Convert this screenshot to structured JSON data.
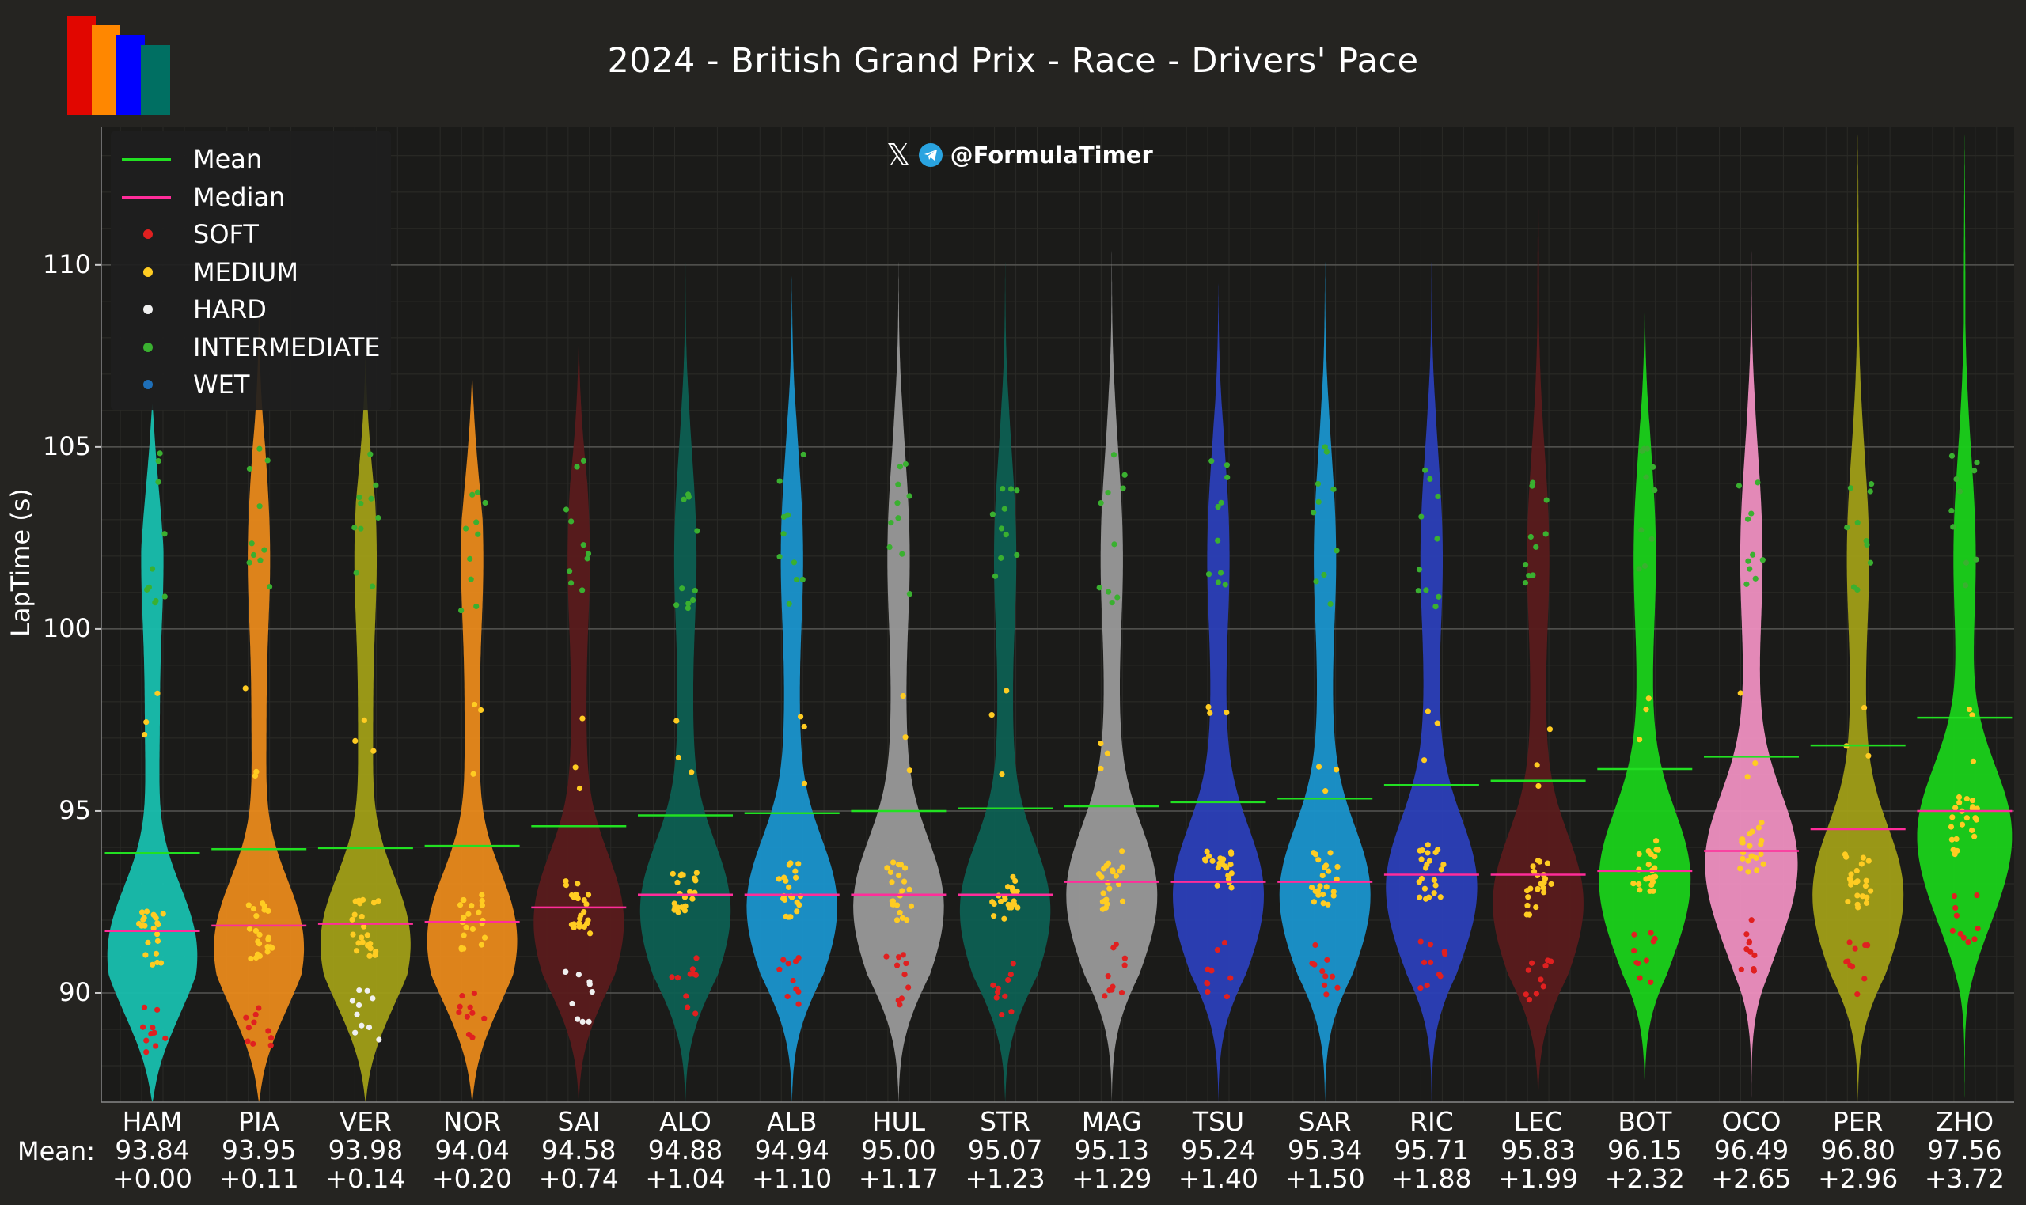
{
  "title": "2024 - British Grand Prix - Race - Drivers' Pace",
  "handle": "@FormulaTimer",
  "mean_label": "Mean:",
  "legend": {
    "mean": "Mean",
    "median": "Median",
    "soft": "SOFT",
    "medium": "MEDIUM",
    "hard": "HARD",
    "intermediate": "INTERMEDIATE",
    "wet": "WET"
  },
  "colors": {
    "mean": "#22e022",
    "median": "#ff2d9a",
    "soft": "#e02020",
    "medium": "#ffcc22",
    "hard": "#f0f0f0",
    "intermediate": "#3ab030",
    "wet": "#1e6fb8",
    "logo": [
      "#e10600",
      "#ff8700",
      "#0000ff",
      "#006f62"
    ]
  },
  "chart_data": {
    "type": "violin",
    "title": "2024 - British Grand Prix - Race - Drivers' Pace",
    "ylabel": "LapTime (s)",
    "ylim": [
      87,
      113.8
    ],
    "yticks": [
      90,
      95,
      100,
      105,
      110
    ],
    "grid": true,
    "legend_position": "top-left",
    "drivers": [
      {
        "code": "HAM",
        "mean": "93.84",
        "delta": "+0.00",
        "mean_value": 93.84,
        "median": 91.7,
        "color": "#18bfae",
        "min": 87.0,
        "max": 106.2,
        "peak": 91.4
      },
      {
        "code": "PIA",
        "mean": "93.95",
        "delta": "+0.11",
        "mean_value": 93.95,
        "median": 91.85,
        "color": "#e8891b",
        "min": 87.0,
        "max": 109.0,
        "peak": 91.6
      },
      {
        "code": "VER",
        "mean": "93.98",
        "delta": "+0.14",
        "mean_value": 93.98,
        "median": 91.9,
        "color": "#a09e17",
        "min": 87.0,
        "max": 107.5,
        "peak": 91.7
      },
      {
        "code": "NOR",
        "mean": "94.04",
        "delta": "+0.20",
        "mean_value": 94.04,
        "median": 91.95,
        "color": "#e8891b",
        "min": 87.0,
        "max": 107.0,
        "peak": 91.8
      },
      {
        "code": "SAI",
        "mean": "94.58",
        "delta": "+0.74",
        "mean_value": 94.58,
        "median": 92.35,
        "color": "#5a1b1c",
        "min": 87.0,
        "max": 108.0,
        "peak": 92.3
      },
      {
        "code": "ALO",
        "mean": "94.88",
        "delta": "+1.04",
        "mean_value": 94.88,
        "median": 92.7,
        "color": "#0d5f52",
        "min": 87.0,
        "max": 110.3,
        "peak": 92.6
      },
      {
        "code": "ALB",
        "mean": "94.94",
        "delta": "+1.10",
        "mean_value": 94.94,
        "median": 92.7,
        "color": "#1a94cc",
        "min": 87.0,
        "max": 109.8,
        "peak": 92.7
      },
      {
        "code": "HUL",
        "mean": "95.00",
        "delta": "+1.17",
        "mean_value": 95.0,
        "median": 92.7,
        "color": "#999999",
        "min": 87.0,
        "max": 110.3,
        "peak": 92.7
      },
      {
        "code": "STR",
        "mean": "95.07",
        "delta": "+1.23",
        "mean_value": 95.07,
        "median": 92.7,
        "color": "#0d5f52",
        "min": 87.0,
        "max": 110.3,
        "peak": 92.6
      },
      {
        "code": "MAG",
        "mean": "95.13",
        "delta": "+1.29",
        "mean_value": 95.13,
        "median": 93.05,
        "color": "#999999",
        "min": 87.0,
        "max": 110.6,
        "peak": 93.0
      },
      {
        "code": "TSU",
        "mean": "95.24",
        "delta": "+1.40",
        "mean_value": 95.24,
        "median": 93.05,
        "color": "#2b3fb8",
        "min": 87.0,
        "max": 109.6,
        "peak": 93.0
      },
      {
        "code": "SAR",
        "mean": "95.34",
        "delta": "+1.50",
        "mean_value": 95.34,
        "median": 93.05,
        "color": "#1a94cc",
        "min": 87.0,
        "max": 110.3,
        "peak": 93.0
      },
      {
        "code": "RIC",
        "mean": "95.71",
        "delta": "+1.88",
        "mean_value": 95.71,
        "median": 93.25,
        "color": "#2b3fb8",
        "min": 87.0,
        "max": 110.3,
        "peak": 93.2
      },
      {
        "code": "LEC",
        "mean": "95.83",
        "delta": "+1.99",
        "mean_value": 95.83,
        "median": 93.25,
        "color": "#5a1b1c",
        "min": 87.0,
        "max": 113.4,
        "peak": 92.8
      },
      {
        "code": "BOT",
        "mean": "96.15",
        "delta": "+2.32",
        "mean_value": 96.15,
        "median": 93.35,
        "color": "#1ad11a",
        "min": 87.0,
        "max": 109.5,
        "peak": 93.4
      },
      {
        "code": "OCO",
        "mean": "96.49",
        "delta": "+2.65",
        "mean_value": 96.49,
        "median": 93.9,
        "color": "#ee8fc0",
        "min": 87.0,
        "max": 110.6,
        "peak": 93.8
      },
      {
        "code": "PER",
        "mean": "96.80",
        "delta": "+2.96",
        "mean_value": 96.8,
        "median": 94.5,
        "color": "#a09e17",
        "min": 87.0,
        "max": 113.8,
        "peak": 93.0
      },
      {
        "code": "ZHO",
        "mean": "97.56",
        "delta": "+3.72",
        "mean_value": 97.56,
        "median": 95.0,
        "color": "#1ad11a",
        "min": 87.0,
        "max": 113.8,
        "peak": 94.5
      }
    ]
  }
}
